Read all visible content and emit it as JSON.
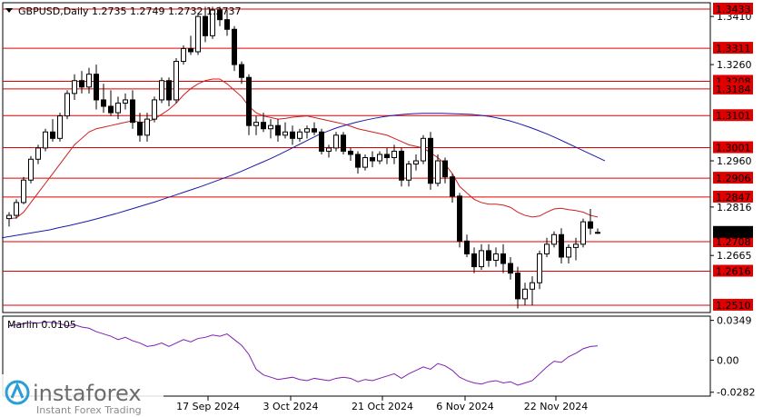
{
  "header": {
    "symbol_text": "GBPUSD,Daily",
    "ohlc_text": "1.2735 1.2749 1.2732 1.2737"
  },
  "logo": {
    "name": "instaforex",
    "tagline": "Instant Forex Trading"
  },
  "colors": {
    "level_line": "#e00000",
    "level_box_bg": "#e00000",
    "ma_fast": "#cc2020",
    "ma_slow": "#1a1aa8",
    "oscillator": "#8020b0",
    "current_price_bg": "#000000",
    "grid_border": "#000000"
  },
  "chart_data": [
    {
      "type": "candlestick",
      "symbol": "GBPUSD",
      "timeframe": "Daily",
      "y_axis_ticks": [
        "1.3410",
        "1.3260",
        "1.2960",
        "1.2816",
        "1.2665"
      ],
      "levels": [
        "1.3433",
        "1.3311",
        "1.3208",
        "1.3184",
        "1.3101",
        "1.3001",
        "1.2906",
        "1.2847",
        "1.2708",
        "1.2616",
        "1.2510"
      ],
      "current_price": "1.2737",
      "x_ticks": [
        "17 Sep 2024",
        "3 Oct 2024",
        "21 Oct 2024",
        "6 Nov 2024",
        "22 Nov 2024"
      ],
      "ylim": [
        1.249,
        1.345
      ],
      "candles": [
        [
          1.278,
          1.28,
          1.2755,
          1.279
        ],
        [
          1.279,
          1.284,
          1.278,
          1.283
        ],
        [
          1.283,
          1.291,
          1.2825,
          1.29
        ],
        [
          1.29,
          1.2975,
          1.289,
          1.2965
        ],
        [
          1.2965,
          1.301,
          1.295,
          1.3
        ],
        [
          1.3,
          1.306,
          1.299,
          1.305
        ],
        [
          1.305,
          1.309,
          1.302,
          1.303
        ],
        [
          1.303,
          1.311,
          1.302,
          1.31
        ],
        [
          1.31,
          1.318,
          1.309,
          1.317
        ],
        [
          1.317,
          1.323,
          1.315,
          1.321
        ],
        [
          1.321,
          1.324,
          1.317,
          1.319
        ],
        [
          1.319,
          1.325,
          1.317,
          1.323
        ],
        [
          1.323,
          1.326,
          1.312,
          1.315
        ],
        [
          1.315,
          1.32,
          1.311,
          1.313
        ],
        [
          1.313,
          1.318,
          1.31,
          1.311
        ],
        [
          1.311,
          1.316,
          1.309,
          1.314
        ],
        [
          1.314,
          1.317,
          1.312,
          1.315
        ],
        [
          1.315,
          1.318,
          1.306,
          1.308
        ],
        [
          1.308,
          1.311,
          1.302,
          1.304
        ],
        [
          1.304,
          1.311,
          1.302,
          1.309
        ],
        [
          1.309,
          1.316,
          1.308,
          1.315
        ],
        [
          1.315,
          1.322,
          1.314,
          1.321
        ],
        [
          1.321,
          1.322,
          1.313,
          1.315
        ],
        [
          1.315,
          1.328,
          1.314,
          1.327
        ],
        [
          1.327,
          1.332,
          1.326,
          1.331
        ],
        [
          1.331,
          1.335,
          1.329,
          1.33
        ],
        [
          1.33,
          1.342,
          1.329,
          1.341
        ],
        [
          1.341,
          1.344,
          1.333,
          1.335
        ],
        [
          1.335,
          1.344,
          1.334,
          1.343
        ],
        [
          1.343,
          1.344,
          1.338,
          1.34
        ],
        [
          1.34,
          1.343,
          1.335,
          1.337
        ],
        [
          1.337,
          1.338,
          1.324,
          1.326
        ],
        [
          1.326,
          1.327,
          1.32,
          1.322
        ],
        [
          1.322,
          1.323,
          1.304,
          1.307
        ],
        [
          1.307,
          1.31,
          1.304,
          1.308
        ],
        [
          1.308,
          1.311,
          1.305,
          1.306
        ],
        [
          1.306,
          1.309,
          1.303,
          1.307
        ],
        [
          1.307,
          1.309,
          1.302,
          1.304
        ],
        [
          1.304,
          1.308,
          1.303,
          1.305
        ],
        [
          1.305,
          1.307,
          1.301,
          1.303
        ],
        [
          1.303,
          1.306,
          1.302,
          1.305
        ],
        [
          1.305,
          1.307,
          1.303,
          1.306
        ],
        [
          1.306,
          1.308,
          1.304,
          1.305
        ],
        [
          1.305,
          1.306,
          1.298,
          1.299
        ],
        [
          1.299,
          1.301,
          1.297,
          1.3
        ],
        [
          1.3,
          1.305,
          1.299,
          1.304
        ],
        [
          1.304,
          1.305,
          1.298,
          1.299
        ],
        [
          1.299,
          1.3,
          1.296,
          1.298
        ],
        [
          1.298,
          1.299,
          1.292,
          1.294
        ],
        [
          1.294,
          1.298,
          1.293,
          1.297
        ],
        [
          1.297,
          1.299,
          1.294,
          1.296
        ],
        [
          1.296,
          1.299,
          1.295,
          1.298
        ],
        [
          1.298,
          1.3,
          1.295,
          1.297
        ],
        [
          1.297,
          1.301,
          1.295,
          1.299
        ],
        [
          1.299,
          1.3,
          1.288,
          1.29
        ],
        [
          1.29,
          1.296,
          1.288,
          1.295
        ],
        [
          1.295,
          1.298,
          1.293,
          1.296
        ],
        [
          1.296,
          1.304,
          1.295,
          1.303
        ],
        [
          1.303,
          1.305,
          1.287,
          1.289
        ],
        [
          1.289,
          1.298,
          1.288,
          1.296
        ],
        [
          1.296,
          1.297,
          1.289,
          1.291
        ],
        [
          1.291,
          1.292,
          1.283,
          1.285
        ],
        [
          1.285,
          1.286,
          1.269,
          1.271
        ],
        [
          1.271,
          1.273,
          1.266,
          1.267
        ],
        [
          1.267,
          1.269,
          1.261,
          1.263
        ],
        [
          1.263,
          1.27,
          1.262,
          1.268
        ],
        [
          1.268,
          1.27,
          1.263,
          1.265
        ],
        [
          1.265,
          1.269,
          1.263,
          1.267
        ],
        [
          1.267,
          1.27,
          1.261,
          1.264
        ],
        [
          1.264,
          1.266,
          1.259,
          1.261
        ],
        [
          1.261,
          1.263,
          1.25,
          1.253
        ],
        [
          1.253,
          1.258,
          1.251,
          1.256
        ],
        [
          1.256,
          1.26,
          1.251,
          1.258
        ],
        [
          1.258,
          1.268,
          1.256,
          1.267
        ],
        [
          1.267,
          1.272,
          1.266,
          1.27
        ],
        [
          1.27,
          1.274,
          1.269,
          1.273
        ],
        [
          1.273,
          1.275,
          1.264,
          1.266
        ],
        [
          1.266,
          1.27,
          1.264,
          1.269
        ],
        [
          1.269,
          1.272,
          1.265,
          1.27
        ],
        [
          1.27,
          1.278,
          1.269,
          1.277
        ],
        [
          1.277,
          1.281,
          1.273,
          1.275
        ],
        [
          1.2735,
          1.2749,
          1.2732,
          1.2737
        ]
      ],
      "ma_fast": [
        1.278,
        1.2782,
        1.28,
        1.283,
        1.286,
        1.289,
        1.292,
        1.295,
        1.298,
        1.301,
        1.303,
        1.305,
        1.306,
        1.3065,
        1.307,
        1.3075,
        1.308,
        1.3085,
        1.308,
        1.3082,
        1.309,
        1.3105,
        1.312,
        1.314,
        1.3165,
        1.3185,
        1.32,
        1.321,
        1.3215,
        1.3215,
        1.32,
        1.318,
        1.316,
        1.313,
        1.311,
        1.31,
        1.3095,
        1.309,
        1.3092,
        1.3096,
        1.3098,
        1.31,
        1.3095,
        1.309,
        1.3085,
        1.308,
        1.3075,
        1.3068,
        1.306,
        1.3055,
        1.305,
        1.3045,
        1.304,
        1.303,
        1.302,
        1.301,
        1.3005,
        1.3,
        1.2985,
        1.297,
        1.295,
        1.292,
        1.288,
        1.286,
        1.284,
        1.283,
        1.2825,
        1.2825,
        1.2822,
        1.2815,
        1.28,
        1.279,
        1.2785,
        1.2788,
        1.28,
        1.281,
        1.2812,
        1.2808,
        1.2805,
        1.28,
        1.279,
        1.2785
      ],
      "ma_slow_start": 0,
      "ma_slow": [
        1.272,
        1.2725,
        1.273,
        1.2735,
        1.274,
        1.2745,
        1.2752,
        1.2758,
        1.2765,
        1.2772,
        1.278,
        1.2788,
        1.2796,
        1.2805,
        1.2814,
        1.2823,
        1.2832,
        1.2842,
        1.2852,
        1.2862,
        1.2872,
        1.2882,
        1.2893,
        1.2904,
        1.2915,
        1.2927,
        1.294,
        1.2953,
        1.2966,
        1.298,
        1.2995,
        1.301,
        1.3025,
        1.304,
        1.3052,
        1.3063,
        1.3072,
        1.308,
        1.3087,
        1.3093,
        1.3098,
        1.3102,
        1.3105,
        1.3107,
        1.3108,
        1.3108,
        1.3108,
        1.3107,
        1.3106,
        1.3105,
        1.3102,
        1.3098,
        1.3092,
        1.3085,
        1.3076,
        1.3066,
        1.3055,
        1.3043,
        1.303,
        1.3016,
        1.3002,
        1.2988,
        1.2974,
        1.296
      ],
      "oscillator": {
        "name": "Marlin 0.0105",
        "ticks": [
          "0.0349",
          "0.00",
          "-0.0282"
        ],
        "ylim": [
          -0.03,
          0.037
        ],
        "values": [
          0.03,
          0.031,
          0.032,
          0.033,
          0.0325,
          0.0335,
          0.033,
          0.032,
          0.03,
          0.031,
          0.029,
          0.028,
          0.025,
          0.023,
          0.021,
          0.018,
          0.02,
          0.017,
          0.015,
          0.012,
          0.013,
          0.015,
          0.012,
          0.015,
          0.018,
          0.016,
          0.019,
          0.02,
          0.022,
          0.021,
          0.023,
          0.018,
          0.013,
          0.005,
          -0.008,
          -0.013,
          -0.015,
          -0.017,
          -0.016,
          -0.015,
          -0.017,
          -0.018,
          -0.016,
          -0.017,
          -0.018,
          -0.016,
          -0.015,
          -0.016,
          -0.019,
          -0.017,
          -0.018,
          -0.016,
          -0.014,
          -0.012,
          -0.016,
          -0.012,
          -0.009,
          -0.006,
          -0.008,
          -0.003,
          -0.005,
          -0.009,
          -0.015,
          -0.018,
          -0.02,
          -0.021,
          -0.019,
          -0.018,
          -0.02,
          -0.019,
          -0.022,
          -0.02,
          -0.018,
          -0.012,
          -0.006,
          -0.001,
          -0.002,
          0.003,
          0.006,
          0.01,
          0.012,
          0.0125
        ]
      }
    }
  ]
}
